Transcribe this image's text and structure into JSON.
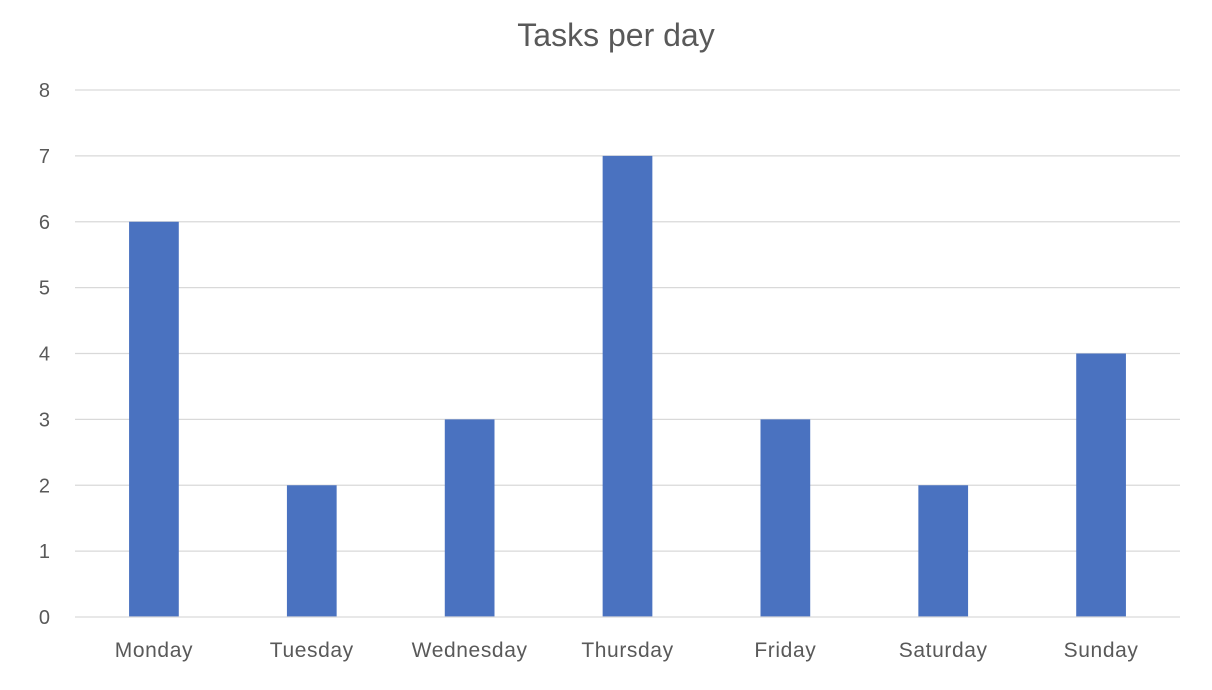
{
  "chart_data": {
    "type": "bar",
    "title": "Tasks per day",
    "xlabel": "",
    "ylabel": "",
    "categories": [
      "Monday",
      "Tuesday",
      "Wednesday",
      "Thursday",
      "Friday",
      "Saturday",
      "Sunday"
    ],
    "series": [
      {
        "values": [
          6,
          2,
          3,
          7,
          3,
          2,
          4
        ],
        "color": "#4a72c0"
      }
    ],
    "ylim": [
      0,
      8
    ],
    "yticks": [
      "0",
      "1",
      "2",
      "3",
      "4",
      "5",
      "6",
      "7",
      "8"
    ],
    "grid": true,
    "legend": "none"
  }
}
